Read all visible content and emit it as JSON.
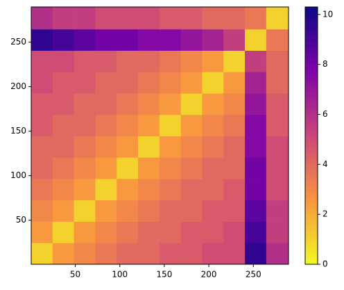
{
  "chart_data": {
    "type": "heatmap",
    "xbins": [
      0.5,
      24.5,
      48.5,
      72.5,
      96.5,
      120.5,
      144.5,
      168.5,
      192.5,
      216.5,
      240.5,
      264.5,
      289.5
    ],
    "ybins": [
      0.5,
      24.5,
      48.5,
      72.5,
      96.5,
      120.5,
      144.5,
      168.5,
      192.5,
      216.5,
      240.5,
      264.5,
      289.5
    ],
    "z": [
      [
        1,
        2.5,
        3,
        3.5,
        4,
        4,
        4.5,
        4.5,
        5,
        5,
        9.5,
        6
      ],
      [
        2.5,
        1,
        2.5,
        3,
        3.5,
        4,
        4,
        4.5,
        4.5,
        5,
        9,
        5.5
      ],
      [
        3,
        2.5,
        1,
        2.5,
        3,
        3.5,
        4,
        4,
        4.5,
        4.5,
        8.5,
        5.5
      ],
      [
        3.5,
        3,
        2.5,
        1,
        2.5,
        3,
        3.5,
        4,
        4,
        4.5,
        8,
        5
      ],
      [
        4,
        3.5,
        3,
        2.5,
        1,
        2.5,
        3,
        3.5,
        4,
        4,
        8,
        5
      ],
      [
        4,
        4,
        3.5,
        3,
        2.5,
        1,
        2.5,
        3,
        3.5,
        4,
        7.5,
        5
      ],
      [
        4.5,
        4,
        4,
        3.5,
        3,
        2.5,
        1,
        2.5,
        3,
        3.5,
        7.5,
        4.5
      ],
      [
        4.5,
        4.5,
        4,
        4,
        3.5,
        3,
        2.5,
        1,
        2.5,
        3,
        7,
        4.5
      ],
      [
        5,
        4.5,
        4.5,
        4,
        4,
        3.5,
        3,
        2.5,
        1,
        2.5,
        6.5,
        4
      ],
      [
        5,
        5,
        4.5,
        4.5,
        4,
        4,
        3.5,
        3,
        2.5,
        1,
        5.5,
        4
      ],
      [
        9.5,
        9,
        8.5,
        8,
        8,
        7.5,
        7.5,
        7,
        6.5,
        5.5,
        1,
        3.5
      ],
      [
        6,
        5.5,
        5.5,
        5,
        5,
        5,
        4.5,
        4.5,
        4,
        4,
        3.5,
        1
      ]
    ],
    "xlim": [
      0.5,
      289.5
    ],
    "ylim": [
      0.5,
      289.5
    ],
    "xticks": [
      50,
      100,
      150,
      200,
      250
    ],
    "yticks": [
      50,
      100,
      150,
      200,
      250
    ],
    "zlim": [
      0,
      10.3
    ],
    "zticks": [
      0,
      2,
      4,
      6,
      8,
      10
    ],
    "colorscale": [
      "#f0f921",
      "#f89540",
      "#cc4778",
      "#7e03a8",
      "#0d0887"
    ]
  }
}
